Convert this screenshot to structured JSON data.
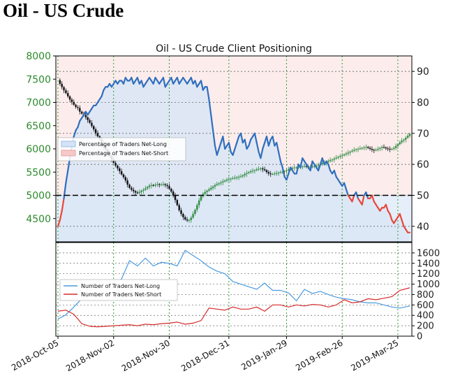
{
  "page": {
    "heading": "Oil - US Crude"
  },
  "colors": {
    "axis_green": "#2c8a2c",
    "axis_black": "#222222",
    "net_long_line": "#2f6fbd",
    "net_short_line": "#e8473a",
    "long_fill": "#dbe7f6",
    "short_fill": "#f9dcdc",
    "candle_up": "#2e8b3e",
    "candle_down": "#111111",
    "count_long_line": "#4a9be0",
    "count_short_line": "#d62b2b",
    "grid_green": "#2c9a2c",
    "grid_gray": "#666666"
  },
  "chart_data": [
    {
      "type": "line",
      "title": "Oil - US Crude Client Positioning",
      "x_ticks": [
        "2018-Oct-05",
        "2018-Nov-02",
        "2018-Nov-30",
        "2018-Dec-31",
        "2019-Jan-29",
        "2019-Feb-26",
        "2019-Mar-25"
      ],
      "y_left": {
        "range": [
          4000,
          8000
        ],
        "ticks": [
          4500,
          5000,
          5500,
          6000,
          6500,
          7000,
          7500,
          8000
        ]
      },
      "y_right": {
        "range": [
          35,
          95
        ],
        "ticks": [
          40,
          50,
          60,
          70,
          80,
          90
        ]
      },
      "reference_line": {
        "axis": "right",
        "value": 50
      },
      "legend": {
        "placement": "upper-left",
        "entries": [
          "Percentage of Traders Net-Long",
          "Percentage of Traders Net-Short"
        ]
      },
      "price_series": {
        "x": [
          0,
          1,
          2,
          3,
          4,
          5,
          6,
          7,
          8,
          9,
          10,
          11,
          12,
          13,
          14,
          15,
          16,
          17,
          18,
          19,
          20,
          21,
          22,
          23,
          24,
          25,
          26,
          27,
          28,
          29,
          30,
          31,
          32,
          33,
          34,
          35,
          36,
          37,
          38,
          39,
          40,
          41,
          42,
          43,
          44,
          45,
          46,
          47,
          48,
          49,
          50,
          51,
          52,
          53,
          54,
          55,
          56,
          57,
          58,
          59,
          60,
          61,
          62,
          63,
          64,
          65,
          66,
          67,
          68,
          69,
          70,
          71,
          72,
          73,
          74,
          75,
          76,
          77,
          78,
          79,
          80,
          81,
          82,
          83,
          84,
          85,
          86,
          87,
          88,
          89,
          90,
          91,
          92,
          93,
          94,
          95,
          96,
          97,
          98,
          99,
          100,
          101,
          102,
          103,
          104,
          105,
          106,
          107,
          108,
          109,
          110,
          111,
          112,
          113,
          114,
          115,
          116,
          117,
          118,
          119,
          120,
          121,
          122,
          123,
          124,
          125,
          126,
          127,
          128,
          129,
          130,
          131,
          132,
          133,
          134,
          135,
          136,
          137,
          138,
          139,
          140,
          141,
          142,
          143,
          144,
          145,
          146,
          147,
          148,
          149,
          150,
          151,
          152,
          153,
          154,
          155,
          156,
          157,
          158,
          159,
          160,
          161,
          162,
          163,
          164,
          165,
          166,
          167,
          168,
          169,
          170,
          171,
          172,
          173,
          174,
          175,
          176,
          177
        ],
        "close": [
          7480,
          7400,
          7330,
          7260,
          7200,
          7130,
          7060,
          7010,
          6950,
          6900,
          6880,
          6800,
          6760,
          6730,
          6680,
          6620,
          6560,
          6490,
          6420,
          6340,
          6270,
          6210,
          6120,
          6060,
          5980,
          5910,
          5850,
          5780,
          5700,
          5640,
          5580,
          5520,
          5450,
          5390,
          5320,
          5230,
          5160,
          5120,
          5090,
          5060,
          5050,
          5070,
          5100,
          5120,
          5150,
          5180,
          5210,
          5220,
          5210,
          5230,
          5240,
          5230,
          5230,
          5240,
          5220,
          5200,
          5140,
          5080,
          5000,
          4900,
          4790,
          4680,
          4600,
          4530,
          4480,
          4460,
          4470,
          4520,
          4600,
          4690,
          4790,
          4890,
          4980,
          5030,
          5070,
          5100,
          5130,
          5160,
          5190,
          5220,
          5240,
          5260,
          5280,
          5300,
          5320,
          5340,
          5350,
          5360,
          5370,
          5380,
          5390,
          5400,
          5410,
          5430,
          5460,
          5480,
          5500,
          5520,
          5530,
          5540,
          5560,
          5570,
          5580,
          5560,
          5540,
          5500,
          5470,
          5460,
          5460,
          5470,
          5480,
          5490,
          5500,
          5510,
          5520,
          5540,
          5560,
          5580,
          5590,
          5600,
          5600,
          5610,
          5620,
          5620,
          5630,
          5620,
          5610,
          5610,
          5620,
          5630,
          5640,
          5650,
          5670,
          5690,
          5700,
          5720,
          5740,
          5760,
          5770,
          5790,
          5810,
          5830,
          5850,
          5860,
          5880,
          5900,
          5920,
          5940,
          5960,
          5980,
          5990,
          6000,
          6010,
          6020,
          6030,
          6040,
          6020,
          6000,
          5980,
          5970,
          5980,
          6000,
          6020,
          6040,
          6030,
          6010,
          6000,
          5990,
          6000,
          6020,
          6060,
          6100,
          6140,
          6180,
          6200,
          6240,
          6280,
          6320
        ]
      },
      "series": [
        {
          "name": "Percentage of Traders Net-Long",
          "x": [
            0,
            1,
            2,
            3,
            4,
            5,
            6,
            7,
            8,
            9,
            10,
            11,
            12,
            13,
            14,
            15,
            16,
            17,
            18,
            19,
            20,
            21,
            22,
            23,
            24,
            25,
            26,
            27,
            28,
            29,
            30,
            31,
            32,
            33,
            34,
            35,
            36,
            37,
            38,
            39,
            40,
            41,
            42,
            43,
            44,
            45,
            46,
            47,
            48,
            49,
            50,
            51,
            52,
            53,
            54,
            55,
            56,
            57,
            58,
            59,
            60,
            61,
            62,
            63,
            64,
            65,
            66,
            67,
            68,
            69,
            70,
            71,
            72,
            73,
            74,
            75,
            76,
            77,
            78,
            79,
            80,
            81,
            82,
            83,
            84,
            85,
            86,
            87,
            88,
            89,
            90,
            91,
            92,
            93,
            94,
            95,
            96,
            97,
            98,
            99,
            100,
            101,
            102,
            103,
            104,
            105,
            106,
            107,
            108,
            109,
            110,
            111,
            112,
            113,
            114,
            115,
            116,
            117,
            118,
            119,
            120,
            121,
            122,
            123,
            124,
            125,
            126,
            127,
            128,
            129,
            130,
            131,
            132,
            133,
            134,
            135,
            136,
            137,
            138,
            139,
            140,
            141,
            142,
            143,
            144,
            145,
            146,
            147,
            148,
            149,
            150,
            151,
            152,
            153,
            154,
            155,
            156,
            157,
            158,
            159,
            160,
            161,
            162,
            163,
            164,
            165,
            166,
            167,
            168,
            169,
            170,
            171,
            172,
            173,
            174,
            175,
            176,
            177
          ],
          "values": [
            40,
            42,
            45,
            49,
            54,
            58,
            62,
            66,
            69,
            71,
            72,
            74,
            75,
            76,
            77,
            76,
            77,
            78,
            79,
            79,
            80,
            81,
            82,
            84,
            85,
            85,
            86,
            85,
            86,
            87,
            86,
            87,
            87,
            86,
            88,
            87,
            87,
            88,
            86,
            87,
            88,
            86,
            87,
            85,
            86,
            87,
            88,
            87,
            86,
            88,
            87,
            86,
            87,
            88,
            85,
            86,
            87,
            88,
            86,
            87,
            88,
            86,
            87,
            88,
            87,
            86,
            87,
            88,
            86,
            87,
            85,
            86,
            87,
            84,
            85,
            85,
            81,
            76,
            71,
            66,
            63,
            65,
            67,
            69,
            65,
            66,
            67,
            64,
            63,
            65,
            67,
            69,
            70,
            67,
            68,
            65,
            66,
            68,
            69,
            70,
            67,
            64,
            62,
            65,
            67,
            69,
            66,
            68,
            69,
            66,
            67,
            64,
            61,
            59,
            56,
            55,
            57,
            59,
            58,
            57,
            57,
            60,
            59,
            62,
            61,
            60,
            59,
            58,
            61,
            60,
            59,
            58,
            60,
            62,
            60,
            61,
            60,
            58,
            57,
            58,
            56,
            55,
            54,
            53,
            54,
            52,
            50,
            49,
            48,
            50,
            51,
            49,
            48,
            47,
            50,
            51,
            49,
            49,
            50,
            48,
            47,
            46,
            45,
            46,
            46,
            47,
            45,
            44,
            42,
            41,
            42,
            43,
            44,
            42,
            40,
            39,
            38,
            38
          ],
          "legend_only_fill": true
        },
        {
          "name": "Percentage of Traders Net-Short",
          "legend_only_fill": true
        }
      ]
    },
    {
      "type": "line",
      "x_ticks": [
        "2018-Oct-05",
        "2018-Nov-02",
        "2018-Nov-30",
        "2018-Dec-31",
        "2019-Jan-29",
        "2019-Feb-26",
        "2019-Mar-25"
      ],
      "y_right": {
        "range": [
          0,
          1800
        ],
        "ticks": [
          0,
          200,
          400,
          600,
          800,
          1000,
          1200,
          1400,
          1600
        ]
      },
      "legend": {
        "placement": "upper-left",
        "entries": [
          "Number of Traders Net-Long",
          "Number of Traders Net-Short"
        ]
      },
      "series": [
        {
          "name": "Number of Traders Net-Long",
          "x": [
            0,
            4,
            8,
            12,
            16,
            20,
            24,
            28,
            32,
            36,
            40,
            44,
            48,
            52,
            56,
            60,
            64,
            68,
            72,
            76,
            80,
            84,
            88,
            92,
            96,
            100,
            104,
            108,
            112,
            116,
            120,
            124,
            128,
            132,
            136,
            140,
            144,
            148,
            152,
            156,
            160,
            164,
            168,
            172,
            177
          ],
          "values": [
            330,
            410,
            560,
            720,
            820,
            900,
            980,
            1000,
            1100,
            1450,
            1350,
            1500,
            1350,
            1420,
            1400,
            1350,
            1650,
            1550,
            1450,
            1330,
            1250,
            1200,
            1050,
            1000,
            950,
            900,
            1020,
            880,
            880,
            830,
            680,
            900,
            820,
            860,
            800,
            750,
            720,
            700,
            660,
            640,
            640,
            600,
            560,
            540,
            580
          ]
        },
        {
          "name": "Number of Traders Net-Short",
          "x": [
            0,
            4,
            8,
            12,
            16,
            20,
            24,
            28,
            32,
            36,
            40,
            44,
            48,
            52,
            56,
            60,
            64,
            68,
            72,
            76,
            80,
            84,
            88,
            92,
            96,
            100,
            104,
            108,
            112,
            116,
            120,
            124,
            128,
            132,
            136,
            140,
            144,
            148,
            152,
            156,
            160,
            164,
            168,
            172,
            177
          ],
          "values": [
            480,
            500,
            420,
            240,
            190,
            180,
            190,
            200,
            210,
            220,
            200,
            230,
            220,
            240,
            250,
            270,
            230,
            250,
            300,
            540,
            520,
            500,
            560,
            520,
            520,
            560,
            480,
            600,
            600,
            560,
            600,
            580,
            610,
            600,
            560,
            600,
            700,
            640,
            660,
            720,
            700,
            730,
            760,
            880,
            930
          ]
        }
      ]
    }
  ]
}
